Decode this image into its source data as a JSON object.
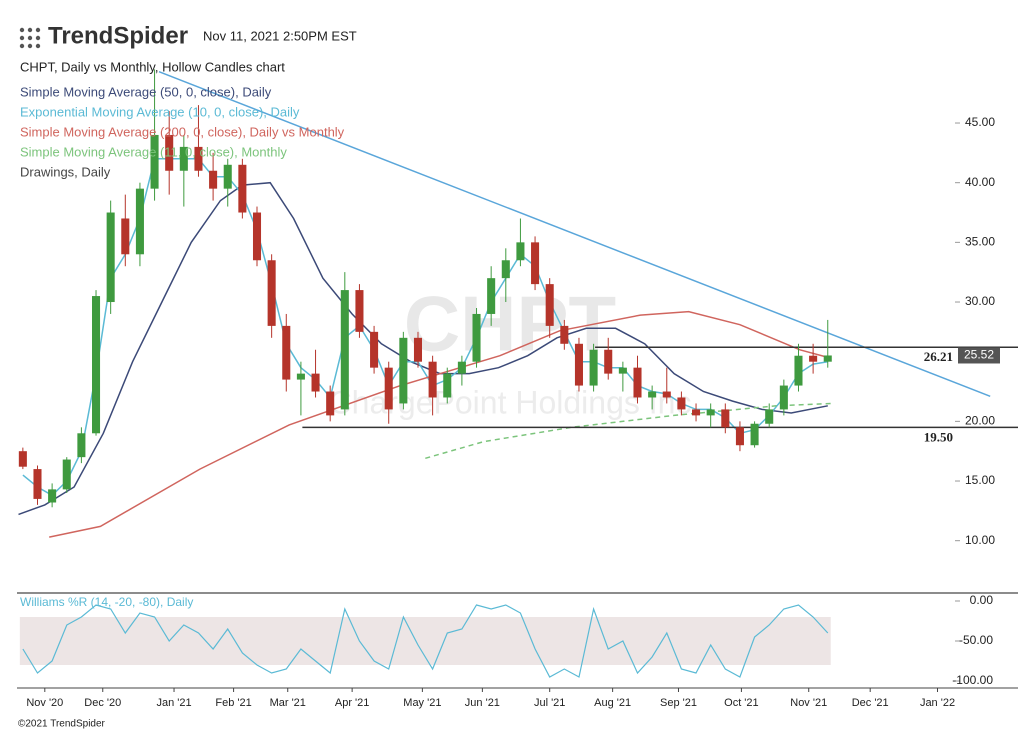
{
  "header": {
    "logo": "TrendSpider",
    "timestamp": "Nov 11, 2021 2:50PM EST"
  },
  "chart_data": {
    "type": "candlestick",
    "title": "CHPT, Daily vs Monthly, Hollow Candles chart",
    "watermark": {
      "symbol": "CHPT",
      "name": "ChargePoint Holdings Inc"
    },
    "up_color": "#3f9a3f",
    "down_color": "#b5342a",
    "candles": {
      "x": [
        -1.5,
        -0.5,
        0.5,
        1.5,
        2.5,
        3.5,
        4.5,
        5.5,
        6.5,
        7.5,
        8.5,
        9.5,
        10.5,
        11.5,
        12.5,
        13.5,
        14.5,
        15.5,
        16.5,
        17.5,
        18.5,
        19.5,
        20.5,
        21.5,
        22.5,
        23.5,
        24.5,
        25.5,
        26.5,
        27.5,
        28.5,
        29.5,
        30.5,
        31.5,
        32.5,
        33.5,
        34.5,
        35.5,
        36.5,
        37.5,
        38.5,
        39.5,
        40.5,
        41.5,
        42.5,
        43.5,
        44.5,
        45.5,
        46.5,
        47.5,
        48.5,
        49.5,
        50.5,
        51.5,
        52.5,
        53.5
      ],
      "open": [
        17.5,
        16.0,
        13.2,
        14.3,
        17.0,
        19.0,
        30.0,
        37.0,
        34.0,
        39.5,
        44.0,
        41.0,
        43.0,
        41.0,
        39.5,
        41.5,
        37.5,
        33.5,
        28.0,
        23.5,
        24.0,
        22.5,
        21.0,
        31.0,
        27.5,
        24.5,
        21.5,
        27.0,
        25.0,
        22.0,
        24.0,
        25.0,
        29.0,
        32.0,
        33.5,
        35.0,
        31.5,
        28.0,
        26.5,
        23.0,
        26.0,
        24.0,
        24.5,
        22.0,
        22.5,
        22.0,
        21.0,
        20.5,
        21.0,
        19.5,
        18.0,
        19.8,
        21.0,
        23.0,
        25.5,
        25.0
      ],
      "high": [
        17.8,
        16.3,
        14.8,
        17.0,
        19.5,
        31.0,
        38.5,
        39.0,
        40.0,
        49.5,
        46.0,
        44.0,
        46.5,
        42.5,
        42.0,
        42.0,
        38.0,
        34.0,
        29.0,
        25.0,
        26.0,
        23.0,
        32.5,
        31.5,
        28.0,
        25.0,
        27.5,
        27.5,
        25.5,
        24.5,
        25.5,
        29.5,
        33.0,
        34.5,
        37.0,
        35.5,
        32.0,
        28.5,
        27.0,
        26.5,
        27.0,
        25.0,
        25.5,
        23.0,
        24.5,
        22.5,
        21.5,
        21.5,
        21.5,
        20.0,
        20.0,
        21.5,
        23.5,
        26.5,
        26.5,
        28.5
      ],
      "low": [
        16.0,
        13.0,
        12.8,
        14.0,
        16.5,
        18.8,
        29.0,
        33.0,
        33.0,
        38.5,
        39.0,
        38.0,
        40.5,
        38.5,
        38.0,
        37.0,
        33.0,
        27.0,
        22.5,
        20.5,
        22.0,
        20.0,
        20.5,
        27.0,
        24.0,
        19.8,
        21.0,
        24.5,
        20.5,
        21.5,
        23.0,
        24.5,
        28.0,
        30.0,
        33.0,
        31.0,
        27.0,
        26.0,
        22.5,
        22.5,
        23.5,
        22.5,
        21.5,
        21.0,
        21.5,
        20.5,
        20.0,
        19.5,
        19.0,
        17.5,
        17.8,
        19.5,
        20.5,
        22.5,
        24.0,
        24.5
      ],
      "close": [
        16.2,
        13.5,
        14.3,
        16.8,
        19.0,
        30.5,
        37.5,
        34.0,
        39.5,
        44.0,
        41.0,
        43.0,
        41.0,
        39.5,
        41.5,
        37.5,
        33.5,
        28.0,
        23.5,
        24.0,
        22.5,
        20.5,
        31.0,
        27.5,
        24.5,
        21.0,
        27.0,
        25.0,
        22.0,
        24.0,
        25.0,
        29.0,
        32.0,
        33.5,
        35.0,
        31.5,
        28.0,
        26.5,
        23.0,
        26.0,
        24.0,
        24.5,
        22.0,
        22.5,
        22.0,
        21.0,
        20.5,
        21.0,
        19.5,
        18.0,
        19.8,
        21.0,
        23.0,
        25.5,
        25.0,
        25.52
      ],
      "last_label": "25.52"
    },
    "overlays": [
      {
        "name": "Simple Moving Average (50, 0, close), Daily",
        "color": "#3c4a78",
        "dashed": false,
        "x": [
          -1.8,
          0,
          2,
          4,
          6,
          8,
          10,
          12,
          13.5,
          15.4,
          17,
          19,
          21,
          23,
          25,
          27,
          29,
          31,
          33,
          35,
          37,
          39,
          41,
          43,
          45,
          47,
          49,
          51,
          53.5
        ],
        "values": [
          12.2,
          13,
          14.5,
          19,
          25,
          30,
          35,
          38.5,
          39.8,
          40,
          37,
          32,
          29,
          26.5,
          25,
          24,
          24,
          24.5,
          25.5,
          27,
          27.8,
          27.8,
          26.5,
          24,
          22.5,
          21.7,
          21,
          20.7,
          21.3
        ]
      },
      {
        "name": "Exponential Moving Average (10, 0, close), Daily",
        "color": "#5bbad5",
        "dashed": false,
        "x": [
          -1.5,
          -0.5,
          0.5,
          1.5,
          2.5,
          3.5,
          4.5,
          5.5,
          6.5,
          7.5,
          8.5,
          9.5,
          10.5,
          11.5,
          12.5,
          13.5,
          14.5,
          15.5,
          16.5,
          17.5,
          18.5,
          19.5,
          20.5,
          21.5,
          22.5,
          23.5,
          24.5,
          25.5,
          26.5,
          27.5,
          28.5,
          29.5,
          30.5,
          31.5,
          32.5,
          33.5,
          34.5,
          35.5,
          36.5,
          37.5,
          38.5,
          39.5,
          40.5,
          41.5,
          42.5,
          43.5,
          44.5,
          45.5,
          46.5,
          47.5,
          48.5,
          49.5,
          50.5,
          51.5,
          52.5,
          53.5
        ],
        "values": [
          15.5,
          14.5,
          13.8,
          15,
          17.5,
          24,
          32,
          34,
          37,
          42,
          42,
          42,
          42,
          40.5,
          40.5,
          39,
          36,
          31.5,
          26.5,
          24.5,
          23.5,
          22,
          27,
          28,
          26,
          23,
          25,
          25,
          23,
          23.5,
          24.5,
          27,
          30,
          32,
          34,
          33,
          30,
          27.5,
          25,
          25,
          24.5,
          24.5,
          23,
          22.5,
          22.3,
          21.5,
          21,
          21,
          20.3,
          19,
          19.3,
          20.5,
          22,
          24,
          24.8,
          25
        ]
      },
      {
        "name": "Simple Moving Average (200, 0, close), Daily vs Monthly",
        "color": "#d0655e",
        "dashed": false,
        "x": [
          0.3,
          3.8,
          10.6,
          16.7,
          24.3,
          31.1,
          35.2,
          40.7,
          44,
          47.5,
          51.6,
          53.7
        ],
        "values": [
          10.3,
          11.2,
          16,
          19.7,
          23,
          25.5,
          27.6,
          28.9,
          29.2,
          28.1,
          26,
          25.3
        ]
      },
      {
        "name": "Simple Moving Average (11, 0, close), Monthly",
        "color": "#7cc47c",
        "dashed": true,
        "x": [
          26,
          30,
          36,
          43,
          50,
          53.7
        ],
        "values": [
          16.9,
          18.3,
          19.5,
          20.5,
          21.3,
          21.5
        ]
      }
    ],
    "drawings_label": "Drawings, Daily",
    "drawings": {
      "color": "#5aa6da",
      "level_color": "#333333",
      "trendline": {
        "x": [
          7.8,
          64.6
        ],
        "values": [
          49.3,
          22.1
        ]
      },
      "levels": [
        {
          "value": 26.21,
          "label": "26.21",
          "x_start": 37.6
        },
        {
          "value": 19.5,
          "label": "19.50",
          "x_start": 17.6
        }
      ]
    },
    "xlim": [
      -1.9,
      66.5
    ],
    "xticks": [
      {
        "value": 0,
        "label": "Nov '20"
      },
      {
        "value": 3.96,
        "label": "Dec '20"
      },
      {
        "value": 8.83,
        "label": "Jan '21"
      },
      {
        "value": 12.9,
        "label": "Feb '21"
      },
      {
        "value": 16.6,
        "label": "Mar '21"
      },
      {
        "value": 21,
        "label": "Apr '21"
      },
      {
        "value": 25.8,
        "label": "May '21"
      },
      {
        "value": 29.9,
        "label": "Jun '21"
      },
      {
        "value": 34.5,
        "label": "Jul '21"
      },
      {
        "value": 38.8,
        "label": "Aug '21"
      },
      {
        "value": 43.3,
        "label": "Sep '21"
      },
      {
        "value": 47.6,
        "label": "Oct '21"
      },
      {
        "value": 52.2,
        "label": "Nov '21"
      },
      {
        "value": 56.4,
        "label": "Dec '21"
      },
      {
        "value": 61,
        "label": "Jan '22"
      }
    ],
    "ylim": [
      5.7,
      50.7
    ],
    "yticks": [
      {
        "value": 10,
        "label": "10.00"
      },
      {
        "value": 15,
        "label": "15.00"
      },
      {
        "value": 20,
        "label": "20.00"
      },
      {
        "value": 30,
        "label": "30.00"
      },
      {
        "value": 35,
        "label": "35.00"
      },
      {
        "value": 40,
        "label": "40.00"
      },
      {
        "value": 45,
        "label": "45.00"
      }
    ],
    "indicator": {
      "name": "Williams %R (14, -20, -80), Daily",
      "color": "#5bbad5",
      "band_color": "#ede5e5",
      "band": [
        -20,
        -80
      ],
      "x": [
        -1.5,
        -0.5,
        0.5,
        1.5,
        2.5,
        3.5,
        4.5,
        5.5,
        6.5,
        7.5,
        8.5,
        9.5,
        10.5,
        11.5,
        12.5,
        13.5,
        14.5,
        15.5,
        16.5,
        17.5,
        18.5,
        19.5,
        20.5,
        21.5,
        22.5,
        23.5,
        24.5,
        25.5,
        26.5,
        27.5,
        28.5,
        29.5,
        30.5,
        31.5,
        32.5,
        33.5,
        34.5,
        35.5,
        36.5,
        37.5,
        38.5,
        39.5,
        40.5,
        41.5,
        42.5,
        43.5,
        44.5,
        45.5,
        46.5,
        47.5,
        48.5,
        49.5,
        50.5,
        51.5,
        52.5,
        53.5
      ],
      "values": [
        -60,
        -90,
        -75,
        -30,
        -20,
        -5,
        -10,
        -40,
        -15,
        -20,
        -50,
        -30,
        -40,
        -60,
        -35,
        -65,
        -80,
        -90,
        -85,
        -60,
        -75,
        -90,
        -10,
        -50,
        -75,
        -85,
        -20,
        -55,
        -85,
        -40,
        -35,
        -5,
        -10,
        -5,
        -15,
        -60,
        -95,
        -85,
        -95,
        -10,
        -60,
        -50,
        -90,
        -70,
        -40,
        -85,
        -90,
        -55,
        -85,
        -95,
        -45,
        -30,
        -10,
        -5,
        -20,
        -40
      ],
      "ylim": [
        -108.75,
        7.5
      ],
      "yticks": [
        {
          "value": 0,
          "label": "0.00"
        },
        {
          "value": -50,
          "label": "-50.00"
        },
        {
          "value": -100,
          "label": "-100.00"
        }
      ]
    }
  },
  "footer": "©2021 TrendSpider"
}
